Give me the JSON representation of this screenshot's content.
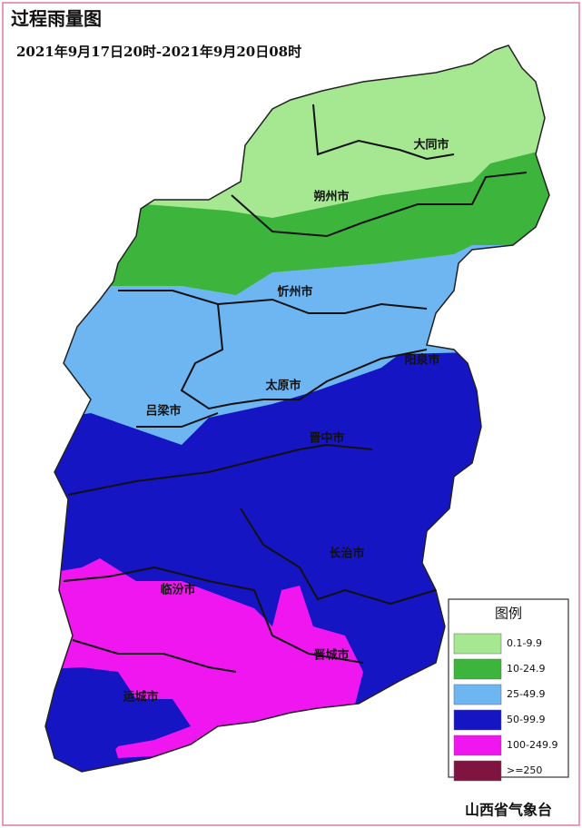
{
  "title": "过程雨量图",
  "subtitle": "2021年9月17日20时-2021年9月20日08时",
  "cities": [
    "大同市",
    "朔州市",
    "忻州市",
    "阳泉市",
    "太原市",
    "吕梁市",
    "晋中市",
    "长治市",
    "临汾市",
    "晋城市",
    "运城市"
  ],
  "legend": {
    "title": "图例",
    "items": [
      {
        "label": "0.1-9.9",
        "color": "#a6e891"
      },
      {
        "label": "10-24.9",
        "color": "#3db53d"
      },
      {
        "label": "25-49.9",
        "color": "#6db6f2"
      },
      {
        "label": "50-99.9",
        "color": "#1515c4"
      },
      {
        "label": "100-249.9",
        "color": "#f016f0"
      },
      {
        "label": ">=250",
        "color": "#7f1440"
      }
    ]
  },
  "footer": "山西省气象台"
}
